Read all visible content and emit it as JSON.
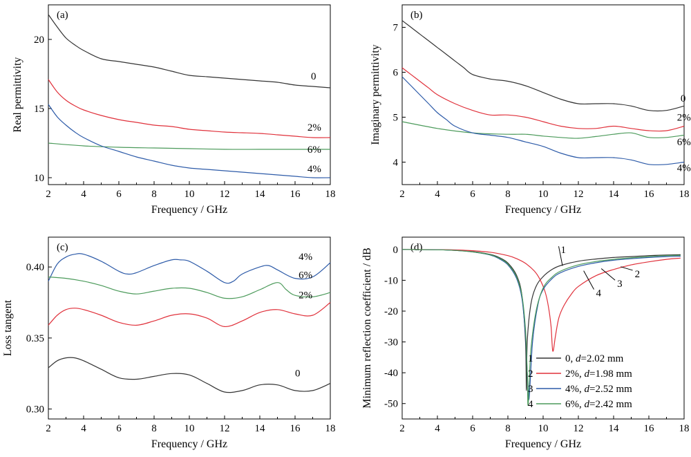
{
  "colors": {
    "black": "#333333",
    "red": "#e0303a",
    "blue": "#2c5aa8",
    "green": "#4b9a5a"
  },
  "chart_data": [
    {
      "panel": "(a)",
      "type": "line",
      "xlabel": "Frequency / GHz",
      "ylabel": "Real permittivity",
      "xlim": [
        2,
        18
      ],
      "ylim": [
        9.5,
        22.5
      ],
      "xticks": [
        2,
        4,
        6,
        8,
        10,
        12,
        14,
        16,
        18
      ],
      "yticks": [
        10,
        15,
        20
      ],
      "series": [
        {
          "name": "0",
          "color": "black",
          "x": [
            2,
            2.5,
            3,
            3.5,
            4,
            5,
            6,
            7,
            8,
            9,
            10,
            11,
            12,
            13,
            14,
            15,
            16,
            17,
            18
          ],
          "y": [
            21.8,
            20.9,
            20.1,
            19.6,
            19.2,
            18.6,
            18.4,
            18.2,
            18.0,
            17.7,
            17.4,
            17.3,
            17.2,
            17.1,
            17.0,
            16.9,
            16.7,
            16.6,
            16.5
          ]
        },
        {
          "name": "2%",
          "color": "red",
          "x": [
            2,
            2.5,
            3,
            3.5,
            4,
            5,
            6,
            7,
            8,
            9,
            10,
            11,
            12,
            13,
            14,
            15,
            16,
            17,
            18
          ],
          "y": [
            17.1,
            16.2,
            15.6,
            15.2,
            14.9,
            14.5,
            14.2,
            14.0,
            13.8,
            13.7,
            13.5,
            13.4,
            13.3,
            13.25,
            13.2,
            13.1,
            13.0,
            12.9,
            12.9
          ]
        },
        {
          "name": "6%",
          "color": "green",
          "x": [
            2,
            4,
            6,
            8,
            10,
            12,
            14,
            16,
            18
          ],
          "y": [
            12.5,
            12.3,
            12.2,
            12.15,
            12.1,
            12.05,
            12.05,
            12.05,
            12.05
          ]
        },
        {
          "name": "4%",
          "color": "blue",
          "x": [
            2,
            2.5,
            3,
            3.5,
            4,
            5,
            6,
            7,
            8,
            9,
            10,
            11,
            12,
            13,
            14,
            15,
            16,
            17,
            18
          ],
          "y": [
            15.3,
            14.4,
            13.8,
            13.3,
            12.9,
            12.3,
            11.9,
            11.5,
            11.2,
            10.9,
            10.7,
            10.6,
            10.5,
            10.4,
            10.3,
            10.2,
            10.1,
            10.0,
            10.0
          ]
        }
      ],
      "curve_labels": [
        {
          "text": "0",
          "x": 16.9,
          "y": 17.1
        },
        {
          "text": "2%",
          "x": 16.7,
          "y": 13.4
        },
        {
          "text": "6%",
          "x": 16.7,
          "y": 11.8
        },
        {
          "text": "4%",
          "x": 16.7,
          "y": 10.4
        }
      ]
    },
    {
      "panel": "(b)",
      "type": "line",
      "xlabel": "Frequency / GHz",
      "ylabel": "Imaginary permittivity",
      "xlim": [
        2,
        18
      ],
      "ylim": [
        3.5,
        7.5
      ],
      "xticks": [
        2,
        4,
        6,
        8,
        10,
        12,
        14,
        16,
        18
      ],
      "yticks": [
        4,
        5,
        6,
        7
      ],
      "series": [
        {
          "name": "0",
          "color": "black",
          "x": [
            2,
            2.5,
            3,
            3.5,
            4,
            4.5,
            5,
            5.5,
            6,
            7,
            8,
            9,
            10,
            11,
            12,
            13,
            14,
            15,
            16,
            17,
            18
          ],
          "y": [
            7.15,
            7.0,
            6.85,
            6.7,
            6.55,
            6.4,
            6.25,
            6.1,
            5.95,
            5.85,
            5.8,
            5.7,
            5.55,
            5.4,
            5.3,
            5.3,
            5.3,
            5.25,
            5.15,
            5.15,
            5.25
          ]
        },
        {
          "name": "2%",
          "color": "red",
          "x": [
            2,
            2.5,
            3,
            3.5,
            4,
            5,
            6,
            7,
            8,
            9,
            10,
            11,
            12,
            13,
            14,
            15,
            16,
            17,
            18
          ],
          "y": [
            6.1,
            5.95,
            5.8,
            5.65,
            5.5,
            5.3,
            5.15,
            5.05,
            5.05,
            5.0,
            4.9,
            4.8,
            4.75,
            4.75,
            4.8,
            4.75,
            4.7,
            4.7,
            4.8
          ]
        },
        {
          "name": "6%",
          "color": "green",
          "x": [
            2,
            4,
            6,
            8,
            9,
            10,
            11,
            12,
            13,
            14,
            15,
            16,
            17,
            18
          ],
          "y": [
            4.9,
            4.75,
            4.65,
            4.62,
            4.62,
            4.58,
            4.55,
            4.53,
            4.57,
            4.62,
            4.65,
            4.55,
            4.55,
            4.6
          ]
        },
        {
          "name": "4%",
          "color": "blue",
          "x": [
            2,
            2.5,
            3,
            3.5,
            4,
            4.5,
            5,
            6,
            7,
            8,
            9,
            10,
            11,
            12,
            13,
            14,
            15,
            16,
            17,
            18
          ],
          "y": [
            5.9,
            5.7,
            5.5,
            5.3,
            5.1,
            4.95,
            4.8,
            4.65,
            4.6,
            4.55,
            4.45,
            4.35,
            4.2,
            4.1,
            4.1,
            4.1,
            4.05,
            3.95,
            3.95,
            4.0
          ]
        }
      ],
      "curve_labels": [
        {
          "text": "0",
          "x": 17.8,
          "y": 5.35
        },
        {
          "text": "2%",
          "x": 17.6,
          "y": 4.92
        },
        {
          "text": "6%",
          "x": 17.6,
          "y": 4.38
        },
        {
          "text": "4%",
          "x": 17.6,
          "y": 3.8
        }
      ]
    },
    {
      "panel": "(c)",
      "type": "line",
      "xlabel": "Frequency / GHz",
      "ylabel": "Loss tangent",
      "xlim": [
        2,
        18
      ],
      "ylim": [
        0.293,
        0.421
      ],
      "xticks": [
        2,
        4,
        6,
        8,
        10,
        12,
        14,
        16,
        18
      ],
      "yticks": [
        0.3,
        0.35,
        0.4
      ],
      "ytick_labels": [
        "0.30",
        "0.35",
        "0.40"
      ],
      "series": [
        {
          "name": "4%",
          "color": "blue",
          "x": [
            2,
            2.5,
            3,
            3.5,
            4,
            5,
            6,
            6.5,
            7,
            8,
            9,
            9.5,
            10,
            11,
            12,
            12.5,
            13,
            14,
            14.5,
            15,
            16,
            17,
            18
          ],
          "y": [
            0.39,
            0.402,
            0.407,
            0.409,
            0.409,
            0.404,
            0.397,
            0.395,
            0.396,
            0.401,
            0.405,
            0.405,
            0.404,
            0.397,
            0.389,
            0.39,
            0.395,
            0.4,
            0.401,
            0.398,
            0.392,
            0.393,
            0.403
          ]
        },
        {
          "name": "6%",
          "color": "green",
          "x": [
            2,
            3,
            4,
            5,
            6,
            7,
            8,
            9,
            10,
            11,
            12,
            13,
            14,
            15,
            15.5,
            16,
            17,
            18
          ],
          "y": [
            0.393,
            0.392,
            0.39,
            0.387,
            0.383,
            0.381,
            0.383,
            0.385,
            0.385,
            0.382,
            0.378,
            0.379,
            0.384,
            0.389,
            0.384,
            0.38,
            0.379,
            0.382
          ]
        },
        {
          "name": "2%",
          "color": "red",
          "x": [
            2,
            2.5,
            3,
            3.5,
            4,
            5,
            6,
            7,
            8,
            9,
            10,
            11,
            12,
            13,
            14,
            15,
            16,
            17,
            18
          ],
          "y": [
            0.359,
            0.366,
            0.37,
            0.371,
            0.37,
            0.366,
            0.361,
            0.359,
            0.362,
            0.366,
            0.367,
            0.364,
            0.358,
            0.362,
            0.368,
            0.37,
            0.367,
            0.366,
            0.375
          ]
        },
        {
          "name": "0",
          "color": "black",
          "x": [
            2,
            2.5,
            3,
            3.5,
            4,
            5,
            6,
            7,
            8,
            9,
            10,
            11,
            12,
            13,
            14,
            15,
            16,
            17,
            18
          ],
          "y": [
            0.329,
            0.334,
            0.336,
            0.336,
            0.334,
            0.328,
            0.322,
            0.321,
            0.323,
            0.325,
            0.324,
            0.318,
            0.312,
            0.313,
            0.317,
            0.317,
            0.313,
            0.313,
            0.318
          ]
        }
      ],
      "curve_labels": [
        {
          "text": "4%",
          "x": 16.2,
          "y": 0.405
        },
        {
          "text": "6%",
          "x": 16.2,
          "y": 0.392
        },
        {
          "text": "2%",
          "x": 16.2,
          "y": 0.378
        },
        {
          "text": "0",
          "x": 16.0,
          "y": 0.323
        }
      ]
    },
    {
      "panel": "(d)",
      "type": "line",
      "xlabel": "Frequency / GHz",
      "ylabel": "Minimum reflection coefficient / dB",
      "xlim": [
        2,
        18
      ],
      "ylim": [
        -55,
        4
      ],
      "xticks": [
        2,
        4,
        6,
        8,
        10,
        12,
        14,
        16,
        18
      ],
      "yticks": [
        0,
        -10,
        -20,
        -30,
        -40,
        -50
      ],
      "series": [
        {
          "name": "0, d=2.02 mm",
          "color": "black",
          "x": [
            2,
            4,
            5,
            6,
            7,
            7.5,
            8,
            8.5,
            8.8,
            9.0,
            9.05,
            9.1,
            9.3,
            9.6,
            10,
            10.5,
            11,
            12,
            13,
            14,
            15,
            16,
            17,
            17.8
          ],
          "y": [
            0,
            -0.1,
            -0.3,
            -0.7,
            -1.6,
            -2.6,
            -4.4,
            -8.5,
            -15,
            -30,
            -45.8,
            -30,
            -18,
            -12,
            -8.8,
            -6.5,
            -5.2,
            -3.8,
            -3.1,
            -2.6,
            -2.3,
            -2.0,
            -1.8,
            -1.7
          ]
        },
        {
          "name": "2%, d=1.98 mm",
          "color": "red",
          "x": [
            2,
            4,
            5,
            6,
            7,
            8,
            8.5,
            9,
            9.5,
            9.8,
            10.1,
            10.3,
            10.45,
            10.55,
            10.7,
            10.9,
            11.2,
            11.6,
            12,
            13,
            14,
            15,
            16,
            17,
            17.8
          ],
          "y": [
            0,
            -0.05,
            -0.15,
            -0.4,
            -0.9,
            -2.0,
            -3.0,
            -4.5,
            -7.0,
            -9.5,
            -13.5,
            -18.5,
            -25,
            -33,
            -28,
            -22,
            -18,
            -14.5,
            -12,
            -8.5,
            -6.5,
            -5,
            -4,
            -3.2,
            -2.8
          ]
        },
        {
          "name": "4%, d=2.52 mm",
          "color": "blue",
          "x": [
            2,
            4,
            5,
            6,
            7,
            7.5,
            8,
            8.5,
            8.8,
            9.0,
            9.1,
            9.2,
            9.4,
            9.7,
            10,
            10.5,
            11,
            12,
            13,
            14,
            15,
            16,
            17,
            17.8
          ],
          "y": [
            0,
            -0.1,
            -0.3,
            -0.8,
            -1.8,
            -3.0,
            -5.0,
            -9.5,
            -16,
            -28,
            -40,
            -48.5,
            -30,
            -18,
            -13,
            -9.5,
            -7.5,
            -5.5,
            -4.3,
            -3.5,
            -3.0,
            -2.6,
            -2.3,
            -2.2
          ]
        },
        {
          "name": "6%, d=2.42 mm",
          "color": "green",
          "x": [
            2,
            4,
            5,
            6,
            7,
            7.5,
            8,
            8.5,
            8.8,
            9.0,
            9.1,
            9.15,
            9.3,
            9.6,
            10,
            10.5,
            11,
            12,
            13,
            14,
            15,
            16,
            17,
            17.8
          ],
          "y": [
            0,
            -0.1,
            -0.3,
            -0.8,
            -1.7,
            -2.8,
            -4.7,
            -9,
            -15,
            -26,
            -40,
            -50.5,
            -33,
            -20,
            -12.5,
            -9,
            -7,
            -5,
            -3.9,
            -3.2,
            -2.7,
            -2.3,
            -2.0,
            -1.9
          ]
        }
      ],
      "curve_labels": [
        {
          "text": "1",
          "x": 11.0,
          "y": -1.2,
          "lx": 11.1,
          "ly": -5.3
        },
        {
          "text": "2",
          "x": 15.2,
          "y": -9.0,
          "lx": 14.4,
          "ly": -5.6
        },
        {
          "text": "3",
          "x": 14.2,
          "y": -12.2,
          "lx": 13.3,
          "ly": -6.2
        },
        {
          "text": "4",
          "x": 13.0,
          "y": -15.2,
          "lx": 12.3,
          "ly": -6.9
        }
      ],
      "legend": [
        {
          "num": "1",
          "pre": "0, ",
          "italic": "d",
          "post": "=2.02 mm",
          "color": "black"
        },
        {
          "num": "2",
          "pre": "2%, ",
          "italic": "d",
          "post": "=1.98 mm",
          "color": "red"
        },
        {
          "num": "3",
          "pre": "4%, ",
          "italic": "d",
          "post": "=2.52 mm",
          "color": "blue"
        },
        {
          "num": "4",
          "pre": "6%, ",
          "italic": "d",
          "post": "=2.42 mm",
          "color": "green"
        }
      ],
      "legend_position": "bottom-right"
    }
  ]
}
